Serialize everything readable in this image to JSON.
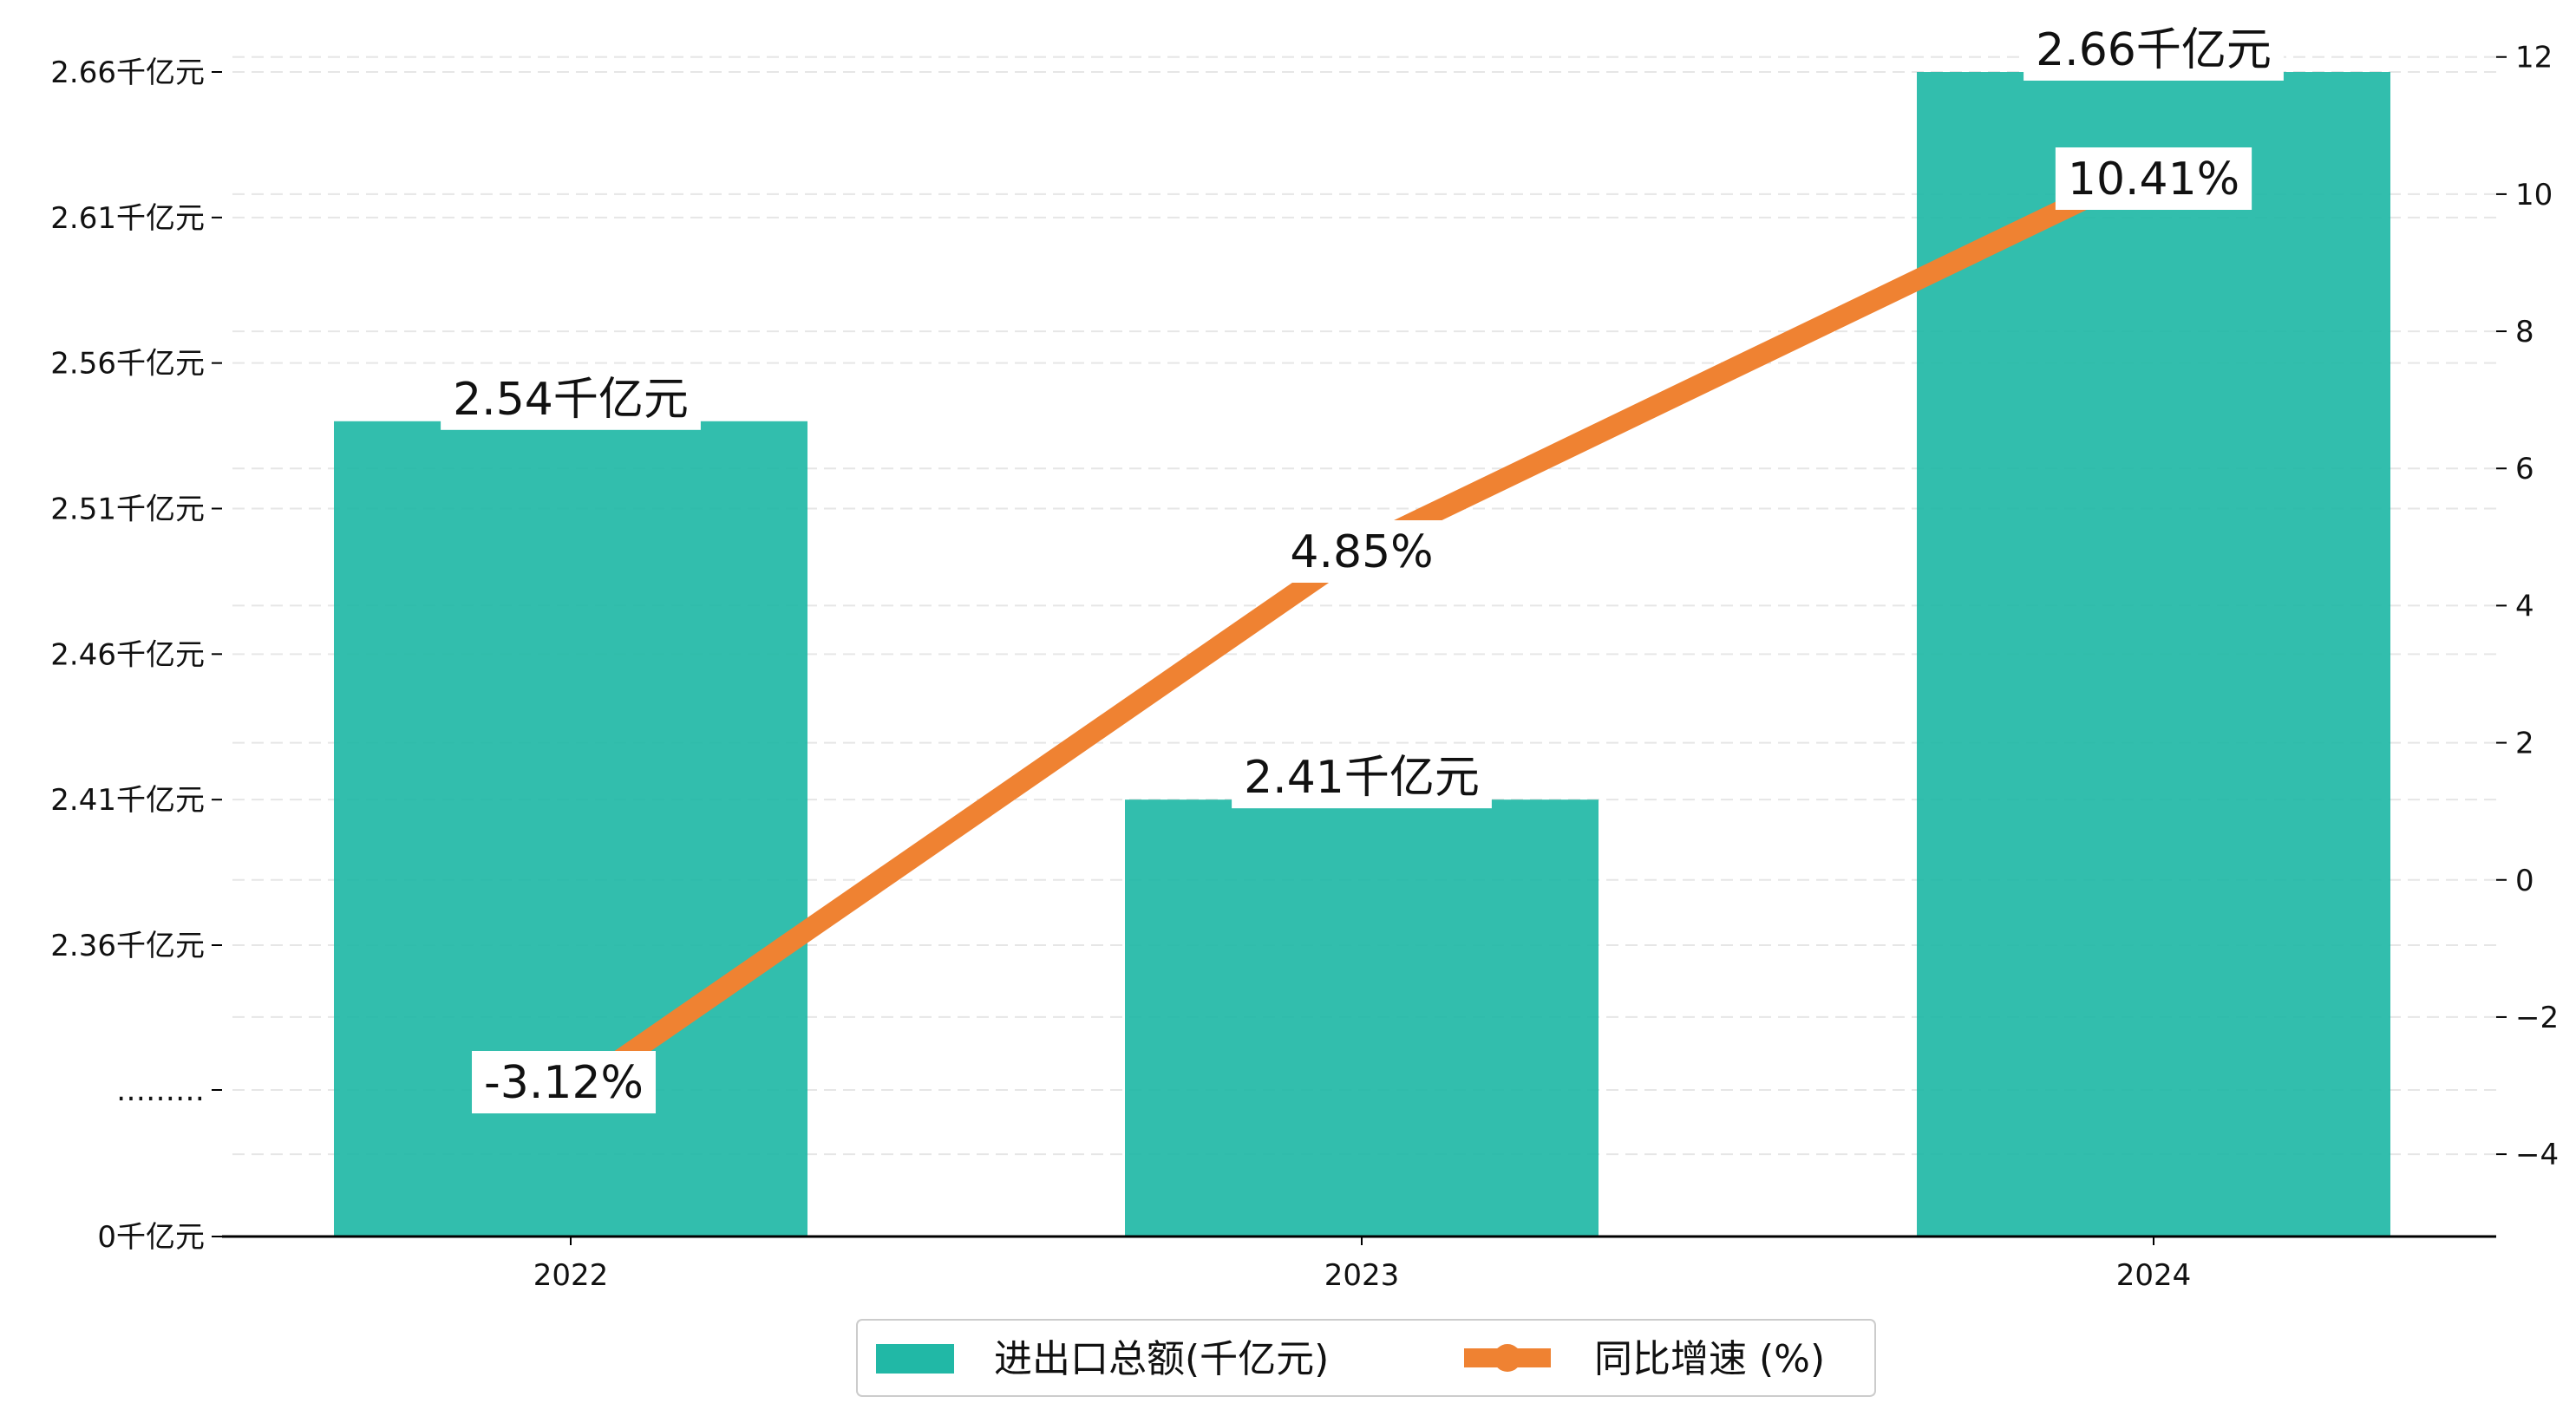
{
  "colors": {
    "bar": "#21b8a6",
    "line": "#ef8232",
    "grid": "#e6e6e6",
    "axis": "#000000",
    "label_bg": "#ffffff"
  },
  "chart_data": {
    "type": "bar",
    "secondary_type": "line",
    "categories": [
      "2022",
      "2023",
      "2024"
    ],
    "series": [
      {
        "name": "进出口总额(千亿元)",
        "type": "bar",
        "axis": "left",
        "values": [
          2.54,
          2.41,
          2.66
        ],
        "labels": [
          "2.54千亿元",
          "2.41千亿元",
          "2.66千亿元"
        ]
      },
      {
        "name": "同比增速 (%)",
        "type": "line",
        "axis": "right",
        "values": [
          -3.12,
          4.85,
          10.41
        ],
        "labels": [
          "-3.12%",
          "4.85%",
          "10.41%"
        ]
      }
    ],
    "left_axis": {
      "broken": true,
      "ticks": [
        {
          "value": 0,
          "label": "0千亿元"
        },
        {
          "value": null,
          "label": "………"
        },
        {
          "value": 2.36,
          "label": "2.36千亿元"
        },
        {
          "value": 2.41,
          "label": "2.41千亿元"
        },
        {
          "value": 2.46,
          "label": "2.46千亿元"
        },
        {
          "value": 2.51,
          "label": "2.51千亿元"
        },
        {
          "value": 2.56,
          "label": "2.56千亿元"
        },
        {
          "value": 2.61,
          "label": "2.61千亿元"
        },
        {
          "value": 2.66,
          "label": "2.66千亿元"
        }
      ]
    },
    "right_axis": {
      "ylim": [
        -5.2,
        12.3
      ],
      "ticks": [
        -4,
        -2,
        0,
        2,
        4,
        6,
        8,
        10,
        12
      ]
    },
    "grid": "horizontal-dashed",
    "legend": {
      "position": "bottom-center",
      "entries": [
        "进出口总额(千亿元)",
        "同比增速 (%)"
      ]
    }
  }
}
